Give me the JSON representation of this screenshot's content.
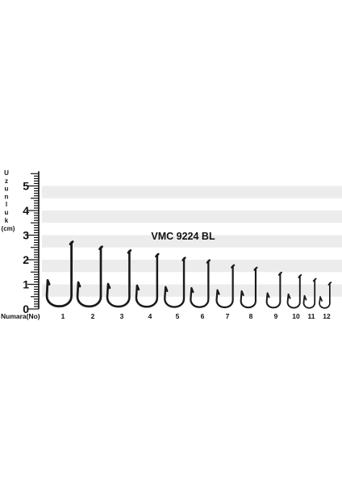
{
  "title": "VMC 9224 BL",
  "y_axis": {
    "label_letters": [
      "U",
      "z",
      "u",
      "n",
      "l",
      "u",
      "k"
    ],
    "unit": "(cm)",
    "tick_labels": [
      "0",
      "1",
      "2",
      "3",
      "4",
      "5"
    ]
  },
  "x_axis": {
    "label": "Numara(No)",
    "tick_labels": [
      "1",
      "2",
      "3",
      "4",
      "5",
      "6",
      "7",
      "8",
      "9",
      "10",
      "11",
      "12"
    ]
  },
  "chart_data": {
    "type": "other",
    "title": "VMC 9224 BL",
    "xlabel": "Numara(No)",
    "ylabel": "Uzunluk (cm)",
    "ylim": [
      0,
      5.5
    ],
    "hooks": [
      {
        "number": "1",
        "length_cm": 2.7,
        "width_cm": 1.0
      },
      {
        "number": "2",
        "length_cm": 2.5,
        "width_cm": 0.95
      },
      {
        "number": "3",
        "length_cm": 2.35,
        "width_cm": 0.9
      },
      {
        "number": "4",
        "length_cm": 2.2,
        "width_cm": 0.85
      },
      {
        "number": "5",
        "length_cm": 2.05,
        "width_cm": 0.78
      },
      {
        "number": "6",
        "length_cm": 1.95,
        "width_cm": 0.72
      },
      {
        "number": "7",
        "length_cm": 1.75,
        "width_cm": 0.66
      },
      {
        "number": "8",
        "length_cm": 1.65,
        "width_cm": 0.6
      },
      {
        "number": "9",
        "length_cm": 1.45,
        "width_cm": 0.55
      },
      {
        "number": "10",
        "length_cm": 1.35,
        "width_cm": 0.5
      },
      {
        "number": "11",
        "length_cm": 1.2,
        "width_cm": 0.45
      },
      {
        "number": "12",
        "length_cm": 1.05,
        "width_cm": 0.42
      }
    ]
  }
}
